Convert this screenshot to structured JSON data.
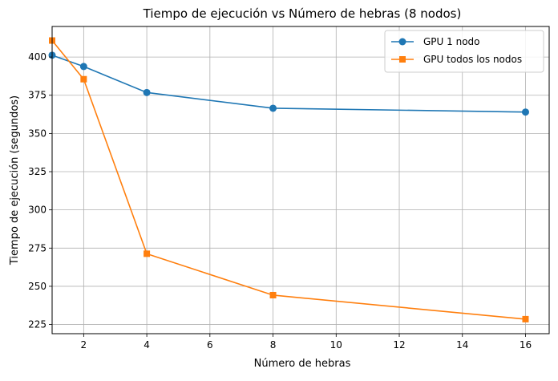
{
  "chart_data": {
    "type": "line",
    "title": "Tiempo de ejecución vs Número de hebras (8 nodos)",
    "xlabel": "Número de hebras",
    "ylabel": "Tiempo de ejecución (segundos)",
    "xlim": [
      1,
      16.75
    ],
    "ylim": [
      219,
      420
    ],
    "xticks": [
      2,
      4,
      6,
      8,
      10,
      12,
      14,
      16
    ],
    "yticks": [
      225,
      250,
      275,
      300,
      325,
      350,
      375,
      400
    ],
    "grid": true,
    "legend_position": "top-right",
    "series": [
      {
        "name": "GPU 1 nodo",
        "color": "#1f77b4",
        "marker": "circle",
        "x": [
          1,
          2,
          4,
          8,
          16
        ],
        "values": [
          401.2,
          393.8,
          376.8,
          366.5,
          364.0
        ]
      },
      {
        "name": "GPU todos los nodos",
        "color": "#ff7f0e",
        "marker": "square",
        "x": [
          1,
          2,
          4,
          8,
          16
        ],
        "values": [
          410.8,
          385.5,
          271.3,
          244.2,
          228.5
        ]
      }
    ]
  }
}
